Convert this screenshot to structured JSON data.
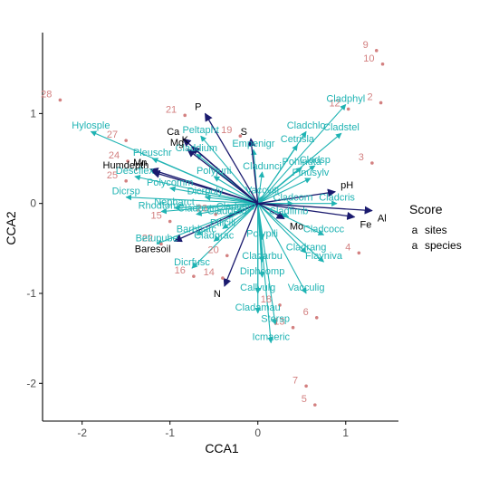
{
  "chart_data": {
    "type": "scatter",
    "xlabel": "CCA1",
    "ylabel": "CCA2",
    "xlim": [
      -2.45,
      1.6
    ],
    "ylim": [
      -2.42,
      1.9
    ],
    "xticks": [
      -2,
      -1,
      0,
      1
    ],
    "yticks": [
      -2,
      -1,
      0,
      1
    ],
    "grid": false,
    "legend": {
      "title": "Score",
      "placement": "right",
      "entries": [
        {
          "label": "sites",
          "color": "#d38080",
          "glyph": "a"
        },
        {
          "label": "species",
          "color": "#1fb3b3",
          "glyph": "a"
        }
      ]
    },
    "colors": {
      "sites": "#d38080",
      "species": "#1fb3b3",
      "arrows_species": "#1fb3b3",
      "arrows_env": "#1a1a6e"
    },
    "sites": [
      {
        "label": "28",
        "x": -2.25,
        "y": 1.15
      },
      {
        "label": "27",
        "x": -1.5,
        "y": 0.7
      },
      {
        "label": "24",
        "x": -1.48,
        "y": 0.47
      },
      {
        "label": "25",
        "x": -1.5,
        "y": 0.25
      },
      {
        "label": "15",
        "x": -1.0,
        "y": -0.2
      },
      {
        "label": "22",
        "x": -1.1,
        "y": -0.45
      },
      {
        "label": "16",
        "x": -0.73,
        "y": -0.81
      },
      {
        "label": "14",
        "x": -0.4,
        "y": -0.83
      },
      {
        "label": "20",
        "x": -0.35,
        "y": -0.58
      },
      {
        "label": "23",
        "x": -0.48,
        "y": -0.12
      },
      {
        "label": "21",
        "x": -0.83,
        "y": 0.98
      },
      {
        "label": "19",
        "x": -0.2,
        "y": 0.75
      },
      {
        "label": "18",
        "x": 0.25,
        "y": -1.13
      },
      {
        "label": "13",
        "x": 0.4,
        "y": -1.38
      },
      {
        "label": "6",
        "x": 0.67,
        "y": -1.27
      },
      {
        "label": "7",
        "x": 0.55,
        "y": -2.03
      },
      {
        "label": "5",
        "x": 0.65,
        "y": -2.24
      },
      {
        "label": "4",
        "x": 1.15,
        "y": -0.55
      },
      {
        "label": "3",
        "x": 1.3,
        "y": 0.45
      },
      {
        "label": "2",
        "x": 1.4,
        "y": 1.12
      },
      {
        "label": "12",
        "x": 1.03,
        "y": 1.05
      },
      {
        "label": "9",
        "x": 1.35,
        "y": 1.7
      },
      {
        "label": "10",
        "x": 1.42,
        "y": 1.55
      }
    ],
    "species": [
      {
        "label": "Hylosple",
        "x": -1.9,
        "y": 0.8
      },
      {
        "label": "Pleuschr",
        "x": -1.2,
        "y": 0.5
      },
      {
        "label": "Descflex",
        "x": -1.4,
        "y": 0.3
      },
      {
        "label": "Polycomm",
        "x": -1.0,
        "y": 0.17
      },
      {
        "label": "Dicrsp",
        "x": -1.5,
        "y": 0.07
      },
      {
        "label": "Rhodtome",
        "x": -1.1,
        "y": -0.09
      },
      {
        "label": "Nepharct",
        "x": -0.95,
        "y": -0.05
      },
      {
        "label": "Betupube",
        "x": -1.15,
        "y": -0.45
      },
      {
        "label": "Barbhatc",
        "x": -0.7,
        "y": -0.35
      },
      {
        "label": "Dicrfusc",
        "x": -0.75,
        "y": -0.72
      },
      {
        "label": "Ptilcili",
        "x": -0.4,
        "y": -0.28
      },
      {
        "label": "Cladbotr",
        "x": -0.7,
        "y": -0.12
      },
      {
        "label": "Cladgrac",
        "x": -0.5,
        "y": -0.42
      },
      {
        "label": "Dicrpoly",
        "x": -0.6,
        "y": 0.07
      },
      {
        "label": "Polyjuni",
        "x": -0.5,
        "y": 0.3
      },
      {
        "label": "Empenigr",
        "x": -0.05,
        "y": 0.6
      },
      {
        "label": "Pohlnuta",
        "x": 0.5,
        "y": 0.4
      },
      {
        "label": "Cetrisla",
        "x": 0.45,
        "y": 0.65
      },
      {
        "label": "Cladchlo",
        "x": 0.55,
        "y": 0.8
      },
      {
        "label": "Pinusylv",
        "x": 0.6,
        "y": 0.28
      },
      {
        "label": "Cladsp",
        "x": 0.65,
        "y": 0.42
      },
      {
        "label": "Cladphyl",
        "x": 1.0,
        "y": 1.1
      },
      {
        "label": "Cladstel",
        "x": 0.95,
        "y": 0.78
      },
      {
        "label": "Vaccviti",
        "x": 0.05,
        "y": 0.08
      },
      {
        "label": "Cladunci",
        "x": 0.05,
        "y": 0.35
      },
      {
        "label": "Cladfimb",
        "x": 0.35,
        "y": -0.15
      },
      {
        "label": "Cladcocc",
        "x": 0.75,
        "y": -0.35
      },
      {
        "label": "Cladrang",
        "x": 0.55,
        "y": -0.55
      },
      {
        "label": "Flavniva",
        "x": 0.75,
        "y": -0.65
      },
      {
        "label": "Polypili",
        "x": 0.05,
        "y": -0.4
      },
      {
        "label": "Cladarbu",
        "x": 0.05,
        "y": -0.65
      },
      {
        "label": "Diphcomp",
        "x": 0.05,
        "y": -0.82
      },
      {
        "label": "Vacculig",
        "x": 0.55,
        "y": -1.0
      },
      {
        "label": "Callvulg",
        "x": 0.0,
        "y": -1.0
      },
      {
        "label": "Cladamau",
        "x": 0.0,
        "y": -1.22
      },
      {
        "label": "Stersp",
        "x": 0.2,
        "y": -1.35
      },
      {
        "label": "Icmaeric",
        "x": 0.15,
        "y": -1.55
      },
      {
        "label": "Cladcorn",
        "x": 0.4,
        "y": 0.0
      },
      {
        "label": "Cladcris",
        "x": 0.9,
        "y": 0.0
      },
      {
        "label": "Cladcerv",
        "x": -0.25,
        "y": -0.1
      },
      {
        "label": "Claddefo",
        "x": -0.35,
        "y": -0.15
      },
      {
        "label": "Peltapht",
        "x": -0.65,
        "y": 0.75
      },
      {
        "label": "Claddium",
        "x": -0.7,
        "y": 0.55
      }
    ],
    "env": [
      {
        "label": "N",
        "x": -0.38,
        "y": -0.92
      },
      {
        "label": "Baresoil",
        "x": -0.95,
        "y": -0.42
      },
      {
        "label": "Humdepth",
        "x": -1.2,
        "y": 0.35
      },
      {
        "label": "Mn",
        "x": -1.22,
        "y": 0.38
      },
      {
        "label": "Mg",
        "x": -0.8,
        "y": 0.6
      },
      {
        "label": "Ca",
        "x": -0.85,
        "y": 0.72
      },
      {
        "label": "P",
        "x": -0.6,
        "y": 1.0
      },
      {
        "label": "S",
        "x": -0.08,
        "y": 0.72
      },
      {
        "label": "K",
        "x": -0.75,
        "y": 0.63
      },
      {
        "label": "pH",
        "x": 0.88,
        "y": 0.13
      },
      {
        "label": "Al",
        "x": 1.3,
        "y": -0.08
      },
      {
        "label": "Fe",
        "x": 1.1,
        "y": -0.15
      },
      {
        "label": "Mo",
        "x": 0.3,
        "y": -0.17
      }
    ]
  }
}
